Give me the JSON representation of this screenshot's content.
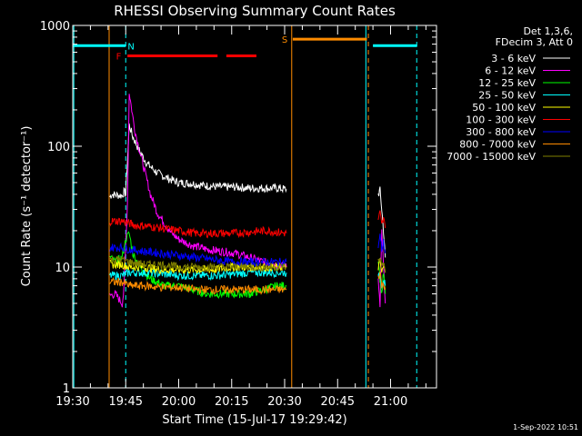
{
  "chart_data": {
    "type": "line",
    "title": "RHESSI Observing Summary Count Rates",
    "xlabel": "Start Time (15-Jul-17 19:29:42)",
    "ylabel": "Count Rate (s⁻¹ detector⁻¹)",
    "yscale": "log",
    "ylim": [
      1,
      1000
    ],
    "xlim_minutes_after_1930": [
      0,
      103
    ],
    "x_ticks": [
      {
        "label": "19:30",
        "min": 0
      },
      {
        "label": "19:45",
        "min": 15
      },
      {
        "label": "20:00",
        "min": 30
      },
      {
        "label": "20:15",
        "min": 45
      },
      {
        "label": "20:30",
        "min": 60
      },
      {
        "label": "20:45",
        "min": 75
      },
      {
        "label": "21:00",
        "min": 90
      }
    ],
    "y_ticks": [
      {
        "label": "1",
        "v": 1
      },
      {
        "label": "10",
        "v": 10
      },
      {
        "label": "100",
        "v": 100
      },
      {
        "label": "1000",
        "v": 1000
      }
    ],
    "legend_header": [
      "Det 1,3,6,",
      "FDecim 3, Att 0"
    ],
    "legend_placement": "right",
    "series": [
      {
        "name": "3 - 6 keV",
        "color": "#ffffff",
        "segments": [
          [
            [
              10.5,
              38
            ],
            [
              11,
              40
            ],
            [
              14,
              39
            ],
            [
              14.5,
              42
            ],
            [
              15,
              40
            ],
            [
              16,
              150
            ],
            [
              17,
              120
            ],
            [
              19,
              90
            ],
            [
              21,
              72
            ],
            [
              24,
              60
            ],
            [
              27,
              54
            ],
            [
              30,
              50
            ],
            [
              34,
              49
            ],
            [
              38,
              47
            ],
            [
              42,
              46
            ],
            [
              46,
              46
            ],
            [
              50,
              45
            ],
            [
              54,
              45
            ],
            [
              58,
              45
            ],
            [
              60.5,
              44
            ]
          ],
          [
            [
              86.5,
              40
            ],
            [
              87,
              43
            ],
            [
              87.5,
              30
            ],
            [
              88,
              20
            ],
            [
              88.5,
              12
            ]
          ]
        ]
      },
      {
        "name": "6 - 12 keV",
        "color": "#ff00ff",
        "segments": [
          [
            [
              10.5,
              5.8
            ],
            [
              12,
              6
            ],
            [
              14,
              5
            ],
            [
              14.5,
              6.5
            ],
            [
              15.5,
              35
            ],
            [
              16,
              280
            ],
            [
              16.5,
              220
            ],
            [
              17.5,
              140
            ],
            [
              19,
              90
            ],
            [
              20.5,
              60
            ],
            [
              22,
              40
            ],
            [
              24,
              28
            ],
            [
              26,
              23
            ],
            [
              28,
              19
            ],
            [
              30,
              17
            ],
            [
              34,
              15
            ],
            [
              38,
              14
            ],
            [
              42,
              13.5
            ],
            [
              46,
              13
            ],
            [
              50,
              12
            ],
            [
              54,
              11
            ],
            [
              58,
              10.5
            ],
            [
              60.5,
              10
            ]
          ],
          [
            [
              86.5,
              8
            ],
            [
              87,
              5
            ],
            [
              87.5,
              20
            ],
            [
              88,
              10
            ],
            [
              88.5,
              5
            ]
          ]
        ]
      },
      {
        "name": "12 - 25 keV",
        "color": "#00ff00",
        "segments": [
          [
            [
              10.5,
              12
            ],
            [
              12,
              11
            ],
            [
              14,
              12
            ],
            [
              15,
              17
            ],
            [
              16,
              19
            ],
            [
              17,
              13
            ],
            [
              19,
              10
            ],
            [
              22,
              8
            ],
            [
              26,
              7
            ],
            [
              30,
              7
            ],
            [
              34,
              6.5
            ],
            [
              38,
              6
            ],
            [
              42,
              6
            ],
            [
              46,
              6
            ],
            [
              50,
              6
            ],
            [
              54,
              6.5
            ],
            [
              58,
              7
            ],
            [
              60.5,
              7
            ]
          ],
          [
            [
              86.5,
              12
            ],
            [
              87,
              8
            ],
            [
              87.5,
              6
            ],
            [
              88,
              9
            ],
            [
              88.5,
              6
            ]
          ]
        ]
      },
      {
        "name": "25 - 50 keV",
        "color": "#00ffff",
        "segments": [
          [
            [
              10.5,
              8.5
            ],
            [
              14,
              8.5
            ],
            [
              16,
              9
            ],
            [
              20,
              9
            ],
            [
              25,
              8.8
            ],
            [
              30,
              8.5
            ],
            [
              35,
              8.5
            ],
            [
              40,
              8.5
            ],
            [
              45,
              8.7
            ],
            [
              50,
              9
            ],
            [
              55,
              9
            ],
            [
              60.5,
              9
            ]
          ],
          [
            [
              86.5,
              8
            ],
            [
              87,
              9
            ],
            [
              87.5,
              7
            ],
            [
              88,
              8
            ],
            [
              88.5,
              7
            ]
          ]
        ]
      },
      {
        "name": "50 - 100 keV",
        "color": "#ffff00",
        "segments": [
          [
            [
              10.5,
              10.5
            ],
            [
              14,
              10.5
            ],
            [
              16,
              10
            ],
            [
              20,
              10
            ],
            [
              25,
              9.5
            ],
            [
              30,
              9.5
            ],
            [
              35,
              9.5
            ],
            [
              40,
              9.5
            ],
            [
              45,
              10
            ],
            [
              50,
              10
            ],
            [
              55,
              10
            ],
            [
              60.5,
              10
            ]
          ],
          [
            [
              86.5,
              10
            ],
            [
              87,
              11
            ],
            [
              87.5,
              9
            ],
            [
              88,
              10
            ],
            [
              88.5,
              9
            ]
          ]
        ]
      },
      {
        "name": "100 - 300 keV",
        "color": "#ff0000",
        "segments": [
          [
            [
              10.5,
              24
            ],
            [
              14,
              24
            ],
            [
              16,
              23
            ],
            [
              18,
              22
            ],
            [
              20,
              22
            ],
            [
              25,
              21
            ],
            [
              30,
              20
            ],
            [
              35,
              19
            ],
            [
              40,
              19
            ],
            [
              45,
              19
            ],
            [
              50,
              19.5
            ],
            [
              55,
              20
            ],
            [
              60.5,
              19
            ]
          ],
          [
            [
              86.5,
              25
            ],
            [
              87,
              28
            ],
            [
              87.5,
              22
            ],
            [
              88,
              25
            ],
            [
              88.5,
              21
            ]
          ]
        ]
      },
      {
        "name": "300 - 800 keV",
        "color": "#0000ff",
        "segments": [
          [
            [
              10.5,
              14.5
            ],
            [
              14,
              14.5
            ],
            [
              16,
              14
            ],
            [
              20,
              13.5
            ],
            [
              25,
              13
            ],
            [
              30,
              12.5
            ],
            [
              35,
              12
            ],
            [
              40,
              11.5
            ],
            [
              45,
              11
            ],
            [
              50,
              11
            ],
            [
              55,
              11
            ],
            [
              60.5,
              11
            ]
          ],
          [
            [
              86.5,
              15
            ],
            [
              87,
              18
            ],
            [
              87.5,
              14
            ],
            [
              88,
              16
            ],
            [
              88.5,
              13
            ]
          ]
        ]
      },
      {
        "name": "800 - 7000 keV",
        "color": "#ff8c00",
        "segments": [
          [
            [
              10.5,
              7.5
            ],
            [
              14,
              7.5
            ],
            [
              16,
              7
            ],
            [
              20,
              7
            ],
            [
              25,
              6.8
            ],
            [
              30,
              6.8
            ],
            [
              35,
              6.5
            ],
            [
              40,
              6.5
            ],
            [
              45,
              6.5
            ],
            [
              50,
              6.5
            ],
            [
              55,
              6.5
            ],
            [
              60.5,
              6.5
            ]
          ],
          [
            [
              86.5,
              8
            ],
            [
              87,
              9
            ],
            [
              87.5,
              7
            ],
            [
              88,
              7.5
            ],
            [
              88.5,
              6.5
            ]
          ]
        ]
      },
      {
        "name": "7000 - 15000 keV",
        "color": "#808000",
        "segments": [
          [
            [
              10.5,
              11.5
            ],
            [
              14,
              11.5
            ],
            [
              16,
              11
            ],
            [
              20,
              10.5
            ],
            [
              25,
              10.5
            ],
            [
              30,
              10
            ],
            [
              35,
              10
            ],
            [
              40,
              10
            ],
            [
              45,
              10
            ],
            [
              50,
              10
            ],
            [
              55,
              10
            ],
            [
              60.5,
              10
            ]
          ],
          [
            [
              86.5,
              11
            ],
            [
              87,
              12
            ],
            [
              87.5,
              10
            ],
            [
              88,
              11
            ],
            [
              88.5,
              9
            ]
          ]
        ]
      }
    ],
    "vertical_lines": [
      {
        "min": 0.3,
        "style": "solid",
        "color": "#00ffff"
      },
      {
        "min": 10.3,
        "style": "solid",
        "color": "#ff8c00"
      },
      {
        "min": 15,
        "style": "dashed",
        "color": "#00ffff"
      },
      {
        "min": 62,
        "style": "solid",
        "color": "#ff8c00"
      },
      {
        "min": 83,
        "style": "solid",
        "color": "#00ffff"
      },
      {
        "min": 83.7,
        "style": "dashed",
        "color": "#ff8c00"
      },
      {
        "min": 97.4,
        "style": "dashed",
        "color": "#00ffff"
      }
    ],
    "annotations": [
      {
        "label": "N",
        "color": "#00ffff",
        "bars": [
          [
            0,
            15
          ],
          [
            85,
            97.5
          ]
        ],
        "v": 680,
        "label_at": 16.5
      },
      {
        "label": "F",
        "color": "#ff0000",
        "bars": [
          [
            15.5,
            41
          ],
          [
            43.5,
            52
          ]
        ],
        "v": 560,
        "label_at": 13
      },
      {
        "label": "S",
        "color": "#ff8c00",
        "bars": [
          [
            62.3,
            83.3
          ]
        ],
        "v": 770,
        "label_at": 60
      }
    ]
  },
  "footer": {
    "date": "1-Sep-2022 10:51"
  }
}
